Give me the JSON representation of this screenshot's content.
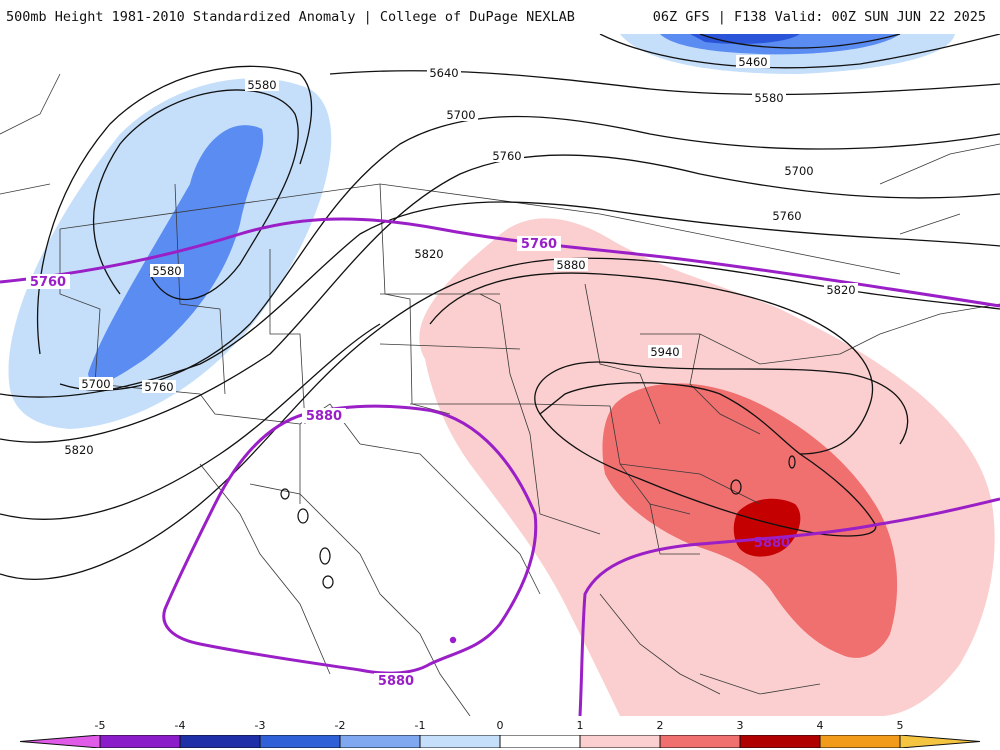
{
  "header": {
    "left_title": "500mb Height 1981-2010 Standardized Anomaly | College of DuPage NEXLAB",
    "right_title": "06Z GFS | F138 Valid: 00Z SUN JUN 22 2025"
  },
  "map": {
    "contour_labels": [
      "5460",
      "5580",
      "5580",
      "5580",
      "5640",
      "5700",
      "5700",
      "5700",
      "5760",
      "5760",
      "5760",
      "5820",
      "5820",
      "5820",
      "5880",
      "5940"
    ],
    "highlight_labels": [
      "5760",
      "5760",
      "5880",
      "5880",
      "5880"
    ],
    "colors": {
      "contour": "#111111",
      "highlight_contour": "#9a1fc7",
      "neg1": "#c5dffa",
      "neg2": "#5b8cf2",
      "neg3": "#2b55d9",
      "pos1": "#fbcfcf",
      "pos2": "#f06f6f",
      "pos3": "#c40000",
      "borders": "#3a3a3a"
    }
  },
  "colorbar": {
    "ticks": [
      "-5",
      "-4",
      "-3",
      "-2",
      "-1",
      "0",
      "1",
      "2",
      "3",
      "4",
      "5"
    ],
    "colors": [
      "#e05be8",
      "#8a1cc9",
      "#1f2fa8",
      "#2f60d8",
      "#7fa8f0",
      "#c5dffa",
      "#ffffff",
      "#fbcfcf",
      "#f06f6f",
      "#b00000",
      "#f29a1a",
      "#f5c542"
    ]
  }
}
